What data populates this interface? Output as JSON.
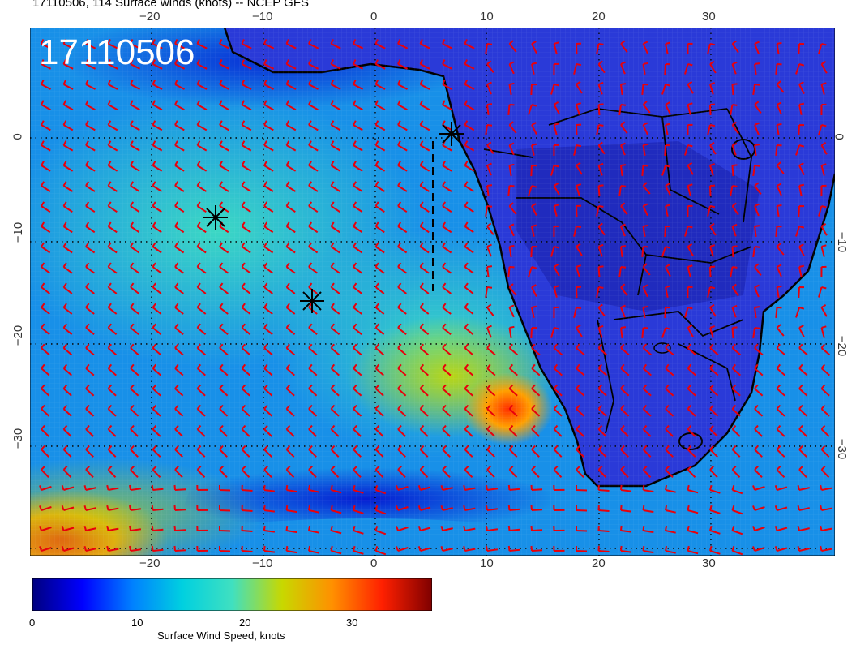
{
  "title": "17110506, 114 Surface winds (knots) -- NCEP GFS",
  "stamp": "17110506",
  "map": {
    "lon_range": [
      -31,
      41
    ],
    "lat_range": [
      -40,
      10
    ],
    "lon_ticks": [
      "−20",
      "−10",
      "0",
      "10",
      "20",
      "30"
    ],
    "lat_ticks": [
      "0",
      "−10",
      "−20",
      "−30"
    ],
    "barb_color": "#e8000b",
    "coast_color": "#000000",
    "markers": [
      {
        "name": "star-marker-1",
        "lon": -14.5,
        "lat": -8
      },
      {
        "name": "star-marker-2",
        "lon": -5.8,
        "lat": -16
      },
      {
        "name": "star-marker-3",
        "lon": 6.7,
        "lat": 0.3
      }
    ]
  },
  "colorbar": {
    "label": "Surface Wind Speed, knots",
    "ticks": [
      "0",
      "10",
      "20",
      "30"
    ],
    "range": [
      0,
      37
    ],
    "colors": [
      "#00007f",
      "#0000ff",
      "#0080ff",
      "#00d0e0",
      "#40e0c0",
      "#c8d800",
      "#ff9000",
      "#ff2000",
      "#7f0000"
    ]
  }
}
